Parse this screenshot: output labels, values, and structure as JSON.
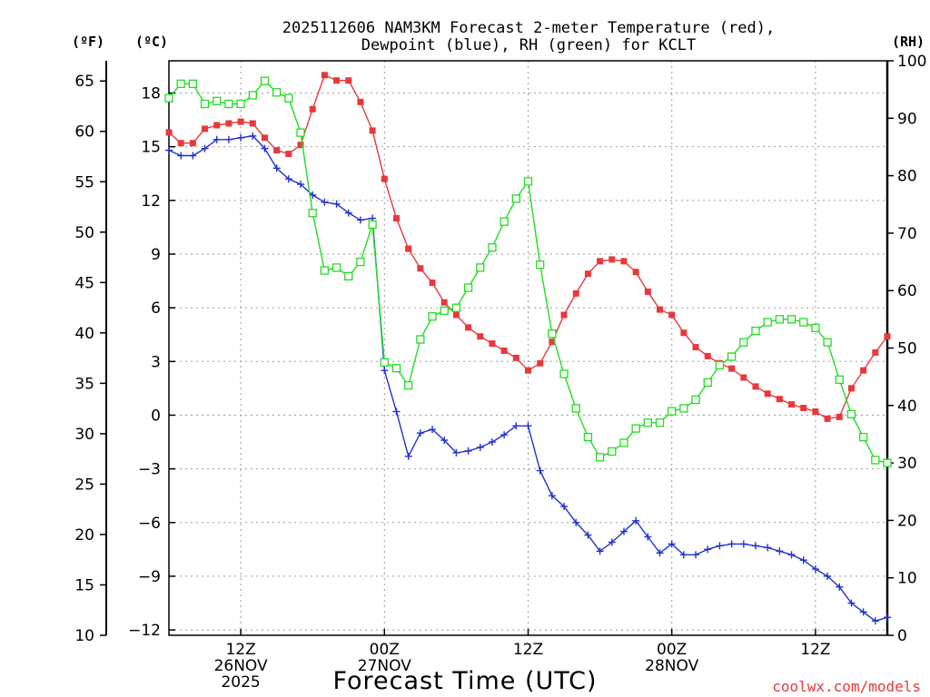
{
  "chart_data": {
    "type": "line",
    "title_line1": "2025112606 NAM3KM Forecast 2-meter Temperature (red),",
    "title_line2": "Dewpoint (blue), RH (green) for KCLT",
    "xlabel": "Forecast Time (UTC)",
    "watermark": "coolwx.com/models",
    "left_outer_axis": {
      "label": "(ºF)",
      "ticks": [
        "65",
        "60",
        "55",
        "50",
        "45",
        "40",
        "35",
        "30",
        "25",
        "20",
        "15",
        "10"
      ],
      "range": [
        10,
        67
      ]
    },
    "left_inner_axis": {
      "label": "(ºC)",
      "ticks": [
        "18",
        "15",
        "12",
        "9",
        "6",
        "3",
        "0",
        "−3",
        "−6",
        "−9",
        "−12"
      ],
      "range": [
        -12.3,
        19.8
      ]
    },
    "right_axis": {
      "label": "(RH)",
      "ticks": [
        "100",
        "90",
        "80",
        "70",
        "60",
        "50",
        "40",
        "30",
        "20",
        "10",
        "0"
      ],
      "range": [
        0,
        100
      ]
    },
    "x_axis": {
      "range_hours": [
        0,
        60
      ],
      "ticks": [
        {
          "hour": 6,
          "line1": "12Z",
          "line2": "26NOV",
          "line3": "2025"
        },
        {
          "hour": 18,
          "line1": "00Z",
          "line2": "27NOV",
          "line3": ""
        },
        {
          "hour": 30,
          "line1": "12Z",
          "line2": "",
          "line3": ""
        },
        {
          "hour": 42,
          "line1": "00Z",
          "line2": "28NOV",
          "line3": ""
        },
        {
          "hour": 54,
          "line1": "12Z",
          "line2": "",
          "line3": ""
        }
      ]
    },
    "series": [
      {
        "name": "Temperature",
        "unit": "C",
        "color": "#e8383c",
        "marker": "filled-square",
        "x": [
          0,
          1,
          2,
          3,
          4,
          5,
          6,
          7,
          8,
          9,
          10,
          11,
          12,
          13,
          14,
          15,
          16,
          17,
          18,
          19,
          20,
          21,
          22,
          23,
          24,
          25,
          26,
          27,
          28,
          29,
          30,
          31,
          32,
          33,
          34,
          35,
          36,
          37,
          38,
          39,
          40,
          41,
          42,
          43,
          44,
          45,
          46,
          47,
          48,
          49,
          50,
          51,
          52,
          53,
          54,
          55,
          56,
          57,
          58,
          59,
          60
        ],
        "values": [
          15.8,
          15.2,
          15.2,
          16.0,
          16.2,
          16.3,
          16.4,
          16.3,
          15.5,
          14.8,
          14.6,
          15.1,
          17.1,
          19.0,
          18.7,
          18.7,
          17.5,
          15.9,
          13.2,
          11.0,
          9.3,
          8.2,
          7.4,
          6.3,
          5.6,
          4.9,
          4.4,
          4.0,
          3.6,
          3.2,
          2.5,
          2.9,
          4.1,
          5.6,
          6.8,
          7.9,
          8.6,
          8.7,
          8.6,
          8.0,
          6.9,
          5.9,
          5.6,
          4.6,
          3.8,
          3.3,
          2.9,
          2.6,
          2.1,
          1.6,
          1.2,
          0.9,
          0.6,
          0.4,
          0.2,
          -0.2,
          -0.1,
          1.5,
          2.5,
          3.5,
          4.4
        ]
      },
      {
        "name": "Dewpoint",
        "unit": "C",
        "color": "#2233cc",
        "marker": "plus",
        "x": [
          0,
          1,
          2,
          3,
          4,
          5,
          6,
          7,
          8,
          9,
          10,
          11,
          12,
          13,
          14,
          15,
          16,
          17,
          18,
          19,
          20,
          21,
          22,
          23,
          24,
          25,
          26,
          27,
          28,
          29,
          30,
          31,
          32,
          33,
          34,
          35,
          36,
          37,
          38,
          39,
          40,
          41,
          42,
          43,
          44,
          45,
          46,
          47,
          48,
          49,
          50,
          51,
          52,
          53,
          54,
          55,
          56,
          57,
          58,
          59,
          60
        ],
        "values": [
          14.8,
          14.5,
          14.5,
          14.9,
          15.4,
          15.4,
          15.5,
          15.6,
          14.9,
          13.8,
          13.2,
          12.9,
          12.3,
          11.9,
          11.8,
          11.3,
          10.9,
          11.0,
          2.5,
          0.2,
          -2.3,
          -1.0,
          -0.8,
          -1.4,
          -2.1,
          -2.0,
          -1.8,
          -1.5,
          -1.1,
          -0.6,
          -0.6,
          -3.1,
          -4.5,
          -5.1,
          -6.0,
          -6.7,
          -7.6,
          -7.1,
          -6.5,
          -5.9,
          -6.8,
          -7.7,
          -7.2,
          -7.8,
          -7.8,
          -7.5,
          -7.3,
          -7.2,
          -7.2,
          -7.3,
          -7.4,
          -7.6,
          -7.8,
          -8.1,
          -8.6,
          -9.0,
          -9.6,
          -10.5,
          -11.0,
          -11.5,
          -11.3
        ]
      },
      {
        "name": "RH",
        "unit": "%",
        "color": "#22dd22",
        "marker": "open-square",
        "x": [
          0,
          1,
          2,
          3,
          4,
          5,
          6,
          7,
          8,
          9,
          10,
          11,
          12,
          13,
          14,
          15,
          16,
          17,
          18,
          19,
          20,
          21,
          22,
          23,
          24,
          25,
          26,
          27,
          28,
          29,
          30,
          31,
          32,
          33,
          34,
          35,
          36,
          37,
          38,
          39,
          40,
          41,
          42,
          43,
          44,
          45,
          46,
          47,
          48,
          49,
          50,
          51,
          52,
          53,
          54,
          55,
          56,
          57,
          58,
          59,
          60
        ],
        "values": [
          93.5,
          96.0,
          96.0,
          92.5,
          93.0,
          92.5,
          92.5,
          94.0,
          96.5,
          94.5,
          93.5,
          87.5,
          73.5,
          63.5,
          64.0,
          62.5,
          65.0,
          71.5,
          47.5,
          46.5,
          43.5,
          51.5,
          55.5,
          56.5,
          57.0,
          60.5,
          64.0,
          67.5,
          72.0,
          76.0,
          79.0,
          64.5,
          52.5,
          45.5,
          39.5,
          34.5,
          31.0,
          32.0,
          33.5,
          36.0,
          37.0,
          37.0,
          39.0,
          39.5,
          41.0,
          44.0,
          47.0,
          48.5,
          51.0,
          53.0,
          54.5,
          55.0,
          55.0,
          54.5,
          53.5,
          51.0,
          44.5,
          38.5,
          34.5,
          30.5,
          30.0
        ]
      }
    ],
    "grid": true
  }
}
